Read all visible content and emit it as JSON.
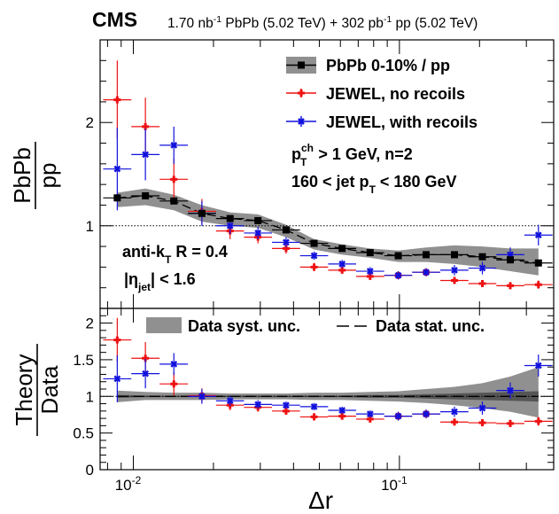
{
  "header": {
    "experiment": "CMS",
    "lumi_pbpb": "1.70 nb",
    "lumi_pbpb_sup": "-1",
    "lumi_pbpb_rest": " PbPb (5.02 TeV) + 302 pb",
    "lumi_pp_sup": "-1",
    "lumi_pp_rest": " pp (5.02 TeV)"
  },
  "top_panel": {
    "ylabel_num": "PbPb",
    "ylabel_den": "pp",
    "legend": {
      "data": "PbPb 0-10% / pp",
      "jewel_no": "JEWEL, no recoils",
      "jewel_with": "JEWEL, with recoils"
    },
    "cuts": {
      "pt_p": "p",
      "pt_sup": "ch",
      "pt_sub": "T",
      "pt_rest": " > 1 GeV, n=2",
      "jet_pre": "160 < jet p",
      "jet_sub": "T",
      "jet_post": " < 180 GeV"
    },
    "jet": {
      "akt_pre": "anti-k",
      "akt_sub": "T",
      "akt_post": " R = 0.4",
      "eta_pre": "|η",
      "eta_sub": "jet",
      "eta_post": "| < 1.6"
    }
  },
  "bottom_panel": {
    "ylabel_num": "Theory",
    "ylabel_den": "Data",
    "legend_syst": "Data syst. unc.",
    "legend_stat": "Data stat. unc."
  },
  "colors": {
    "data": "#000000",
    "syst_band": "#909090",
    "jewel_no": "#ee1111",
    "jewel_with": "#1111dd"
  },
  "chart_data": {
    "type": "scatter",
    "xlabel": "Δr",
    "x_scale": "log",
    "xlim": [
      0.0075,
      0.38
    ],
    "x_ticks": [
      {
        "v": 0.01,
        "b": "10",
        "e": "-2"
      },
      {
        "v": 0.1,
        "b": "10",
        "e": "-1"
      }
    ],
    "x": [
      0.0087,
      0.0111,
      0.0142,
      0.0181,
      0.0231,
      0.0294,
      0.0375,
      0.0478,
      0.0609,
      0.0776,
      0.099,
      0.126,
      0.161,
      0.205,
      0.261,
      0.333
    ],
    "top": {
      "ylim": [
        0.2,
        2.8
      ],
      "y_ticks": [
        1,
        2
      ],
      "reference_line": 1,
      "series": [
        {
          "name": "PbPb 0-10% / pp",
          "values": [
            1.27,
            1.29,
            1.24,
            1.12,
            1.07,
            1.05,
            0.96,
            0.83,
            0.78,
            0.74,
            0.71,
            0.72,
            0.72,
            0.7,
            0.67,
            0.64
          ],
          "syst_lo": [
            1.18,
            1.2,
            1.15,
            1.04,
            1.0,
            0.98,
            0.89,
            0.77,
            0.72,
            0.69,
            0.65,
            0.65,
            0.63,
            0.6,
            0.56,
            0.52
          ],
          "syst_hi": [
            1.32,
            1.36,
            1.3,
            1.2,
            1.13,
            1.11,
            1.01,
            0.87,
            0.82,
            0.78,
            0.76,
            0.79,
            0.81,
            0.8,
            0.78,
            0.78
          ]
        },
        {
          "name": "JEWEL, no recoils",
          "values": [
            2.22,
            1.96,
            1.45,
            1.14,
            0.95,
            0.89,
            0.78,
            0.6,
            0.57,
            0.51,
            0.52,
            0.55,
            0.47,
            0.44,
            0.42,
            0.43
          ],
          "err": [
            0.38,
            0.28,
            0.2,
            0.12,
            0.08,
            0.06,
            0.05,
            0.04,
            0.03,
            0.03,
            0.03,
            0.03,
            0.03,
            0.03,
            0.03,
            0.04
          ]
        },
        {
          "name": "JEWEL, with recoils",
          "values": [
            1.55,
            1.69,
            1.78,
            1.12,
            1.0,
            0.93,
            0.84,
            0.71,
            0.63,
            0.56,
            0.52,
            0.55,
            0.57,
            0.59,
            0.72,
            0.91
          ],
          "err": [
            0.4,
            0.25,
            0.18,
            0.12,
            0.08,
            0.06,
            0.05,
            0.04,
            0.04,
            0.04,
            0.04,
            0.04,
            0.05,
            0.06,
            0.07,
            0.1
          ]
        }
      ]
    },
    "bottom": {
      "ylim": [
        0,
        2.2
      ],
      "y_ticks": [
        0,
        0.5,
        1,
        1.5,
        2
      ],
      "reference_line": 1,
      "syst_lo": [
        0.92,
        0.95,
        0.95,
        0.95,
        0.96,
        0.96,
        0.96,
        0.95,
        0.95,
        0.94,
        0.93,
        0.91,
        0.88,
        0.84,
        0.79,
        0.71
      ],
      "syst_hi": [
        1.08,
        1.06,
        1.05,
        1.05,
        1.04,
        1.04,
        1.04,
        1.05,
        1.05,
        1.06,
        1.07,
        1.1,
        1.13,
        1.18,
        1.27,
        1.4
      ],
      "stat_lo": [
        0.98,
        0.99,
        0.99,
        0.99,
        0.99,
        0.99,
        0.99,
        0.99,
        0.99,
        0.98,
        0.98,
        0.97,
        0.96,
        0.95,
        0.94,
        0.93
      ],
      "stat_hi": [
        1.02,
        1.01,
        1.01,
        1.01,
        1.01,
        1.01,
        1.01,
        1.01,
        1.01,
        1.02,
        1.02,
        1.03,
        1.04,
        1.05,
        1.06,
        1.07
      ],
      "series": [
        {
          "name": "JEWEL, no recoils",
          "values": [
            1.77,
            1.52,
            1.17,
            1.01,
            0.88,
            0.85,
            0.8,
            0.72,
            0.73,
            0.69,
            0.73,
            0.76,
            0.65,
            0.64,
            0.63,
            0.66
          ],
          "err": [
            0.3,
            0.22,
            0.16,
            0.1,
            0.07,
            0.06,
            0.05,
            0.05,
            0.04,
            0.04,
            0.04,
            0.05,
            0.04,
            0.04,
            0.05,
            0.06
          ]
        },
        {
          "name": "JEWEL, with recoils",
          "values": [
            1.24,
            1.31,
            1.44,
            1.0,
            0.94,
            0.89,
            0.88,
            0.86,
            0.81,
            0.76,
            0.73,
            0.76,
            0.79,
            0.84,
            1.08,
            1.42
          ],
          "err": [
            0.32,
            0.2,
            0.15,
            0.1,
            0.07,
            0.06,
            0.05,
            0.05,
            0.05,
            0.05,
            0.06,
            0.06,
            0.07,
            0.09,
            0.11,
            0.15
          ]
        }
      ]
    }
  }
}
